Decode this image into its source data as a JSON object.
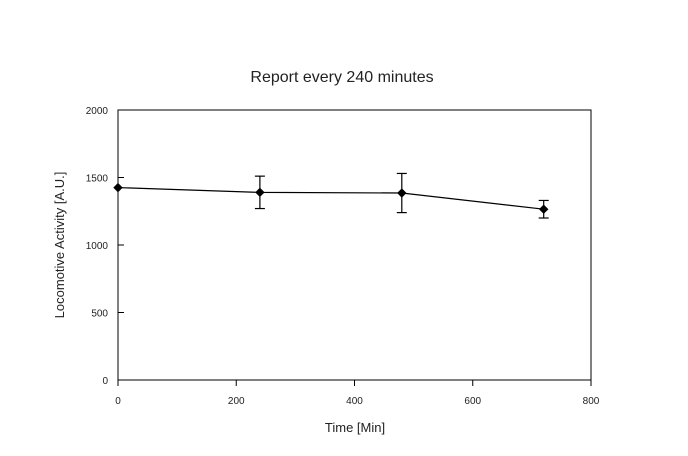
{
  "chart_data": {
    "type": "line",
    "title": "Report every 240 minutes",
    "xlabel": "Time [Min]",
    "ylabel": "Locomotive Activity [A.U.]",
    "xlim": [
      0,
      800
    ],
    "ylim": [
      0,
      2000
    ],
    "xticks": [
      "0",
      "200",
      "400",
      "600",
      "800"
    ],
    "yticks": [
      "0",
      "500",
      "1000",
      "1500",
      "2000"
    ],
    "grid": false,
    "series": [
      {
        "x": [
          0,
          240,
          480,
          720
        ],
        "y": [
          1425,
          1390,
          1385,
          1265
        ],
        "error": [
          0,
          120,
          145,
          65
        ],
        "color": "#000000"
      }
    ]
  }
}
